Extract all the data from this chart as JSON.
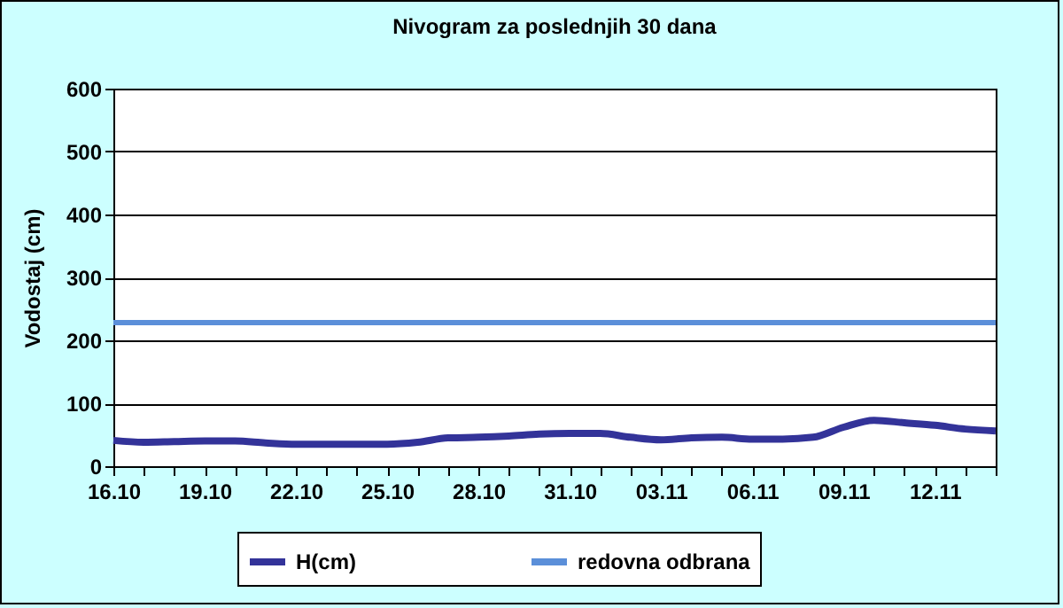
{
  "chart_data": {
    "type": "line",
    "title": "Nivogram za poslednjih 30 dana",
    "ylabel": "Vodostaj (cm)",
    "categories": [
      "16.10",
      null,
      null,
      "19.10",
      null,
      null,
      "22.10",
      null,
      null,
      "25.10",
      null,
      null,
      "28.10",
      null,
      null,
      "31.10",
      null,
      null,
      "03.11",
      null,
      null,
      "06.11",
      null,
      null,
      "09.11",
      null,
      null,
      "12.11",
      null,
      null
    ],
    "series": [
      {
        "name": "H(cm)",
        "color": "#333399",
        "values": [
          41,
          38,
          39,
          40,
          40,
          37,
          35,
          35,
          35,
          35,
          38,
          45,
          46,
          48,
          51,
          52,
          52,
          46,
          42,
          45,
          46,
          43,
          43,
          46,
          62,
          73,
          69,
          65,
          59,
          56
        ]
      }
    ],
    "ref_lines": [
      {
        "axis": "y",
        "value": 228,
        "label": "redovna odbrana",
        "color": "#5b8fd9"
      }
    ],
    "ylim": [
      0,
      600
    ],
    "yticks": [
      0,
      100,
      200,
      300,
      400,
      500,
      600
    ],
    "grid": "y",
    "legend": "bottom"
  }
}
